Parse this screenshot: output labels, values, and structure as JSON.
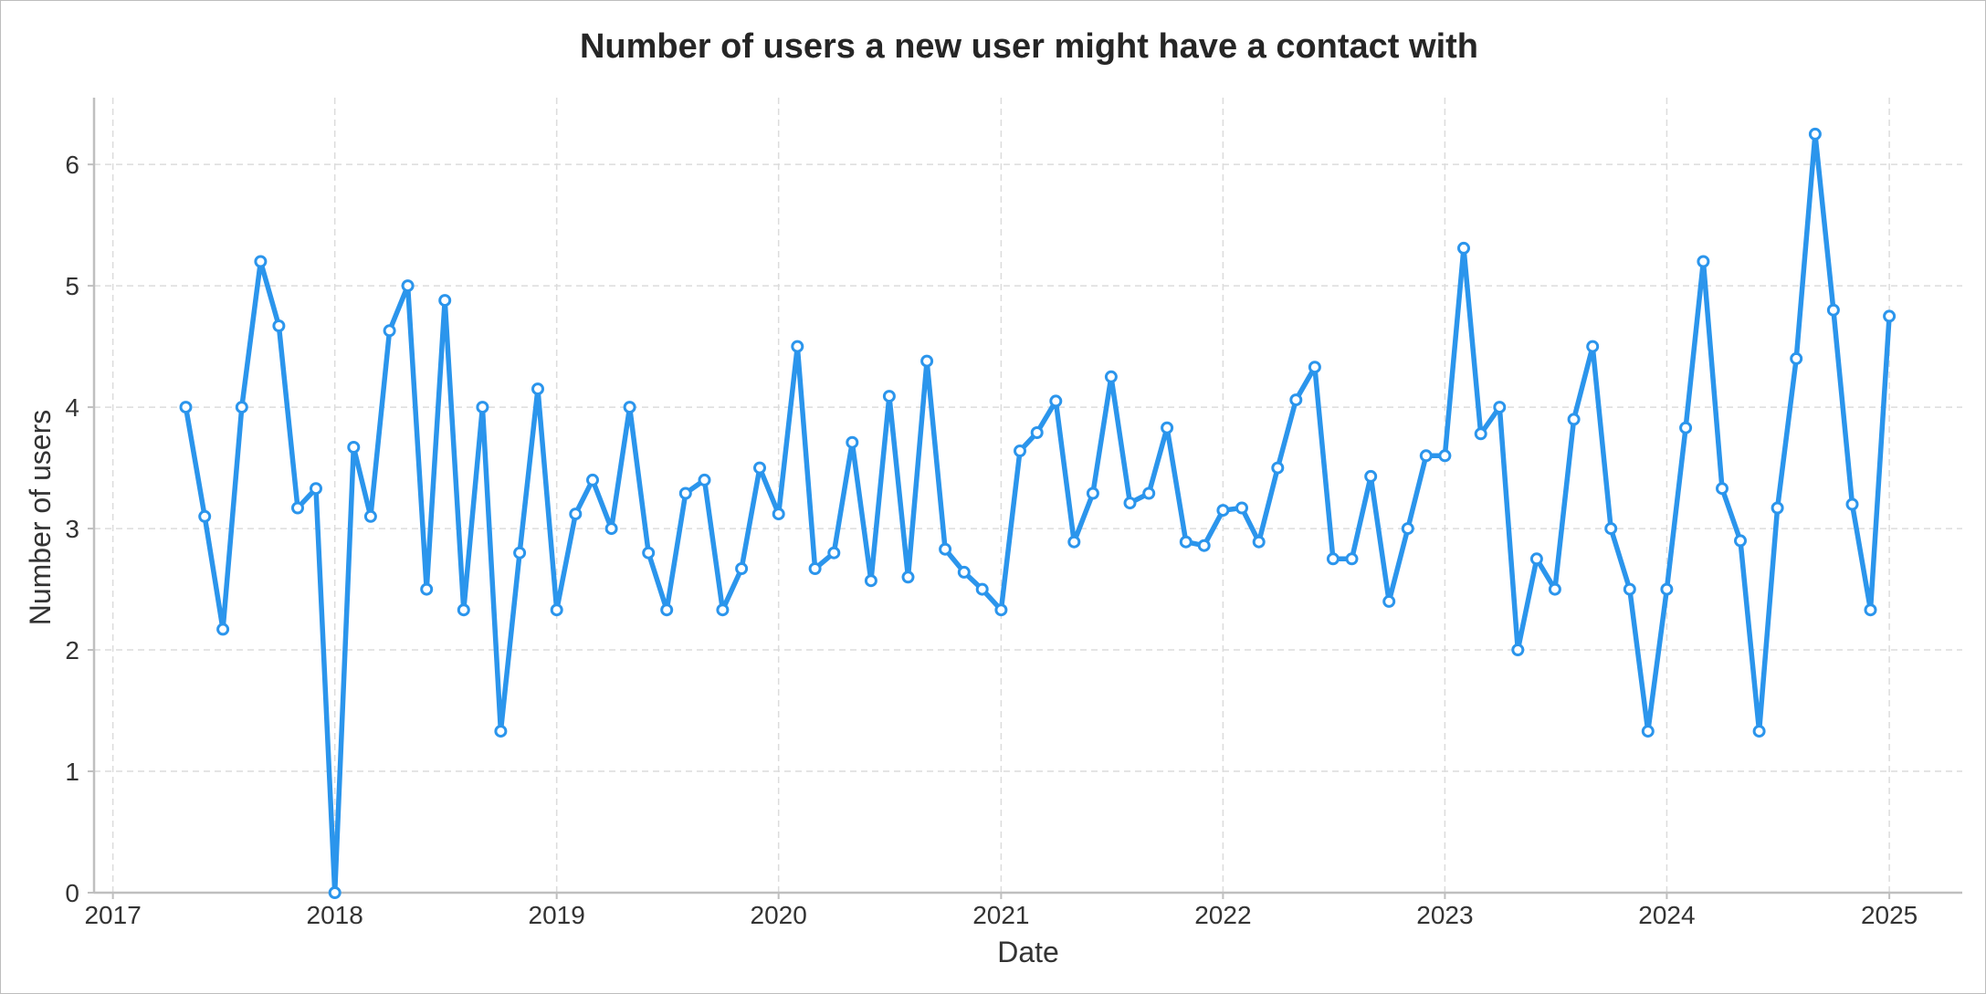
{
  "chart_data": {
    "type": "line",
    "title": "Number of users a new user might have a contact with",
    "xlabel": "Date",
    "ylabel": "Number of users",
    "xlim": [
      "2016-12-01",
      "2025-05-01"
    ],
    "ylim": [
      0,
      6.55
    ],
    "xticks": [
      "2017",
      "2018",
      "2019",
      "2020",
      "2021",
      "2022",
      "2023",
      "2024",
      "2025"
    ],
    "yticks": [
      "0",
      "1",
      "2",
      "3",
      "4",
      "5",
      "6"
    ],
    "grid": true,
    "legend": "none",
    "colors": {
      "line": "#2b95ec"
    },
    "series": [
      {
        "x": [
          "2017-05",
          "2017-06",
          "2017-07",
          "2017-08",
          "2017-09",
          "2017-10",
          "2017-11",
          "2017-12",
          "2018-01",
          "2018-02",
          "2018-03",
          "2018-04",
          "2018-05",
          "2018-06",
          "2018-07",
          "2018-08",
          "2018-09",
          "2018-10",
          "2018-11",
          "2018-12",
          "2019-01",
          "2019-02",
          "2019-03",
          "2019-04",
          "2019-05",
          "2019-06",
          "2019-07",
          "2019-08",
          "2019-09",
          "2019-10",
          "2019-11",
          "2019-12",
          "2020-01",
          "2020-02",
          "2020-03",
          "2020-04",
          "2020-05",
          "2020-06",
          "2020-07",
          "2020-08",
          "2020-09",
          "2020-10",
          "2020-11",
          "2020-12",
          "2021-01",
          "2021-02",
          "2021-03",
          "2021-04",
          "2021-05",
          "2021-06",
          "2021-07",
          "2021-08",
          "2021-09",
          "2021-10",
          "2021-11",
          "2021-12",
          "2022-01",
          "2022-02",
          "2022-03",
          "2022-04",
          "2022-05",
          "2022-06",
          "2022-07",
          "2022-08",
          "2022-09",
          "2022-10",
          "2022-11",
          "2022-12",
          "2023-01",
          "2023-02",
          "2023-03",
          "2023-04",
          "2023-05",
          "2023-06",
          "2023-07",
          "2023-08",
          "2023-09",
          "2023-10",
          "2023-11",
          "2023-12",
          "2024-01",
          "2024-02",
          "2024-03",
          "2024-04",
          "2024-05",
          "2024-06",
          "2024-07",
          "2024-08",
          "2024-09",
          "2024-10",
          "2024-11",
          "2024-12",
          "2025-01"
        ],
        "y": [
          4.0,
          3.1,
          2.17,
          4.0,
          5.2,
          4.67,
          3.17,
          3.33,
          0.0,
          3.67,
          3.1,
          4.63,
          5.0,
          2.5,
          4.88,
          2.33,
          4.0,
          1.33,
          2.8,
          4.15,
          2.33,
          3.12,
          3.4,
          3.0,
          4.0,
          2.8,
          2.33,
          3.29,
          3.4,
          2.33,
          2.67,
          3.5,
          3.12,
          4.5,
          2.67,
          2.8,
          3.71,
          2.57,
          4.09,
          2.6,
          4.38,
          2.83,
          2.64,
          2.5,
          2.33,
          3.64,
          3.79,
          4.05,
          2.89,
          3.29,
          4.25,
          3.21,
          3.29,
          3.83,
          2.89,
          2.86,
          3.15,
          3.17,
          2.89,
          3.5,
          4.06,
          4.33,
          2.75,
          2.75,
          3.43,
          2.4,
          3.0,
          3.6,
          3.6,
          5.31,
          3.78,
          4.0,
          2.0,
          2.75,
          2.5,
          3.9,
          4.5,
          3.0,
          2.5,
          1.33,
          2.5,
          3.83,
          5.2,
          3.33,
          2.9,
          1.33,
          3.17,
          4.4,
          6.25,
          4.8,
          3.2,
          2.33,
          4.75
        ]
      }
    ]
  }
}
